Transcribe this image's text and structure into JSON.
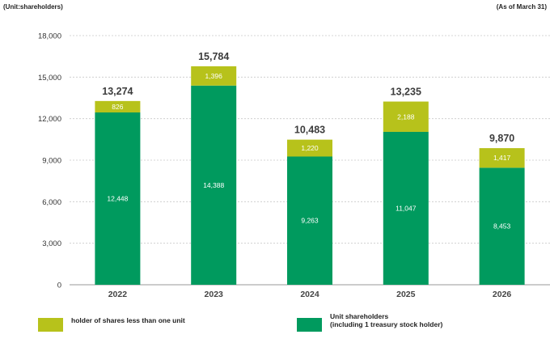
{
  "notes": {
    "unit": "(Unit:shareholders)",
    "as_of": "(As of March 31)"
  },
  "colors": {
    "unit_shareholders": "#009a5e",
    "less_than_one_unit": "#b7c21b"
  },
  "legend": [
    {
      "key": "less",
      "label": "holder of shares less than one unit",
      "color": "#b7c21b"
    },
    {
      "key": "unit",
      "label": "Unit shareholders\n(including 1 treasury stock holder)",
      "color": "#009a5e"
    }
  ],
  "chart_data": {
    "type": "bar",
    "stacked": true,
    "categories": [
      "2022",
      "2023",
      "2024",
      "2025",
      "2026"
    ],
    "series": [
      {
        "name": "Unit shareholders (including 1 treasury stock holder)",
        "values": [
          12448,
          14388,
          9263,
          11047,
          8453
        ],
        "color": "#009a5e"
      },
      {
        "name": "holder of shares less than one unit",
        "values": [
          826,
          1396,
          1220,
          2188,
          1417
        ],
        "color": "#b7c21b"
      }
    ],
    "totals": [
      13274,
      15784,
      10483,
      13235,
      9870
    ],
    "ylim": [
      0,
      18000
    ],
    "yticks": [
      0,
      3000,
      6000,
      9000,
      12000,
      15000,
      18000
    ],
    "grid": true,
    "legend_position": "bottom"
  }
}
